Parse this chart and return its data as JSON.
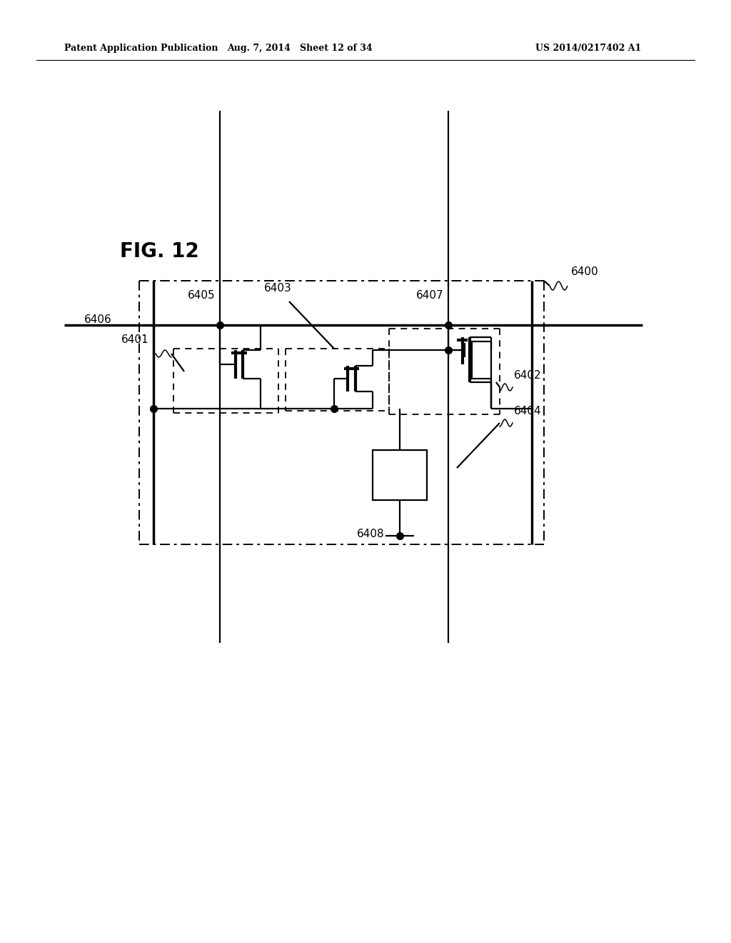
{
  "bg_color": "#ffffff",
  "fig_label": "FIG. 12",
  "header_left": "Patent Application Publication",
  "header_center": "Aug. 7, 2014   Sheet 12 of 34",
  "header_right": "US 2014/0217402 A1",
  "line_color": "#000000",
  "lw_thick": 2.5,
  "lw_thin": 1.6,
  "lw_dash": 1.4,
  "label_fontsize": 11,
  "figlabel_fontsize": 20,
  "header_fontsize": 9
}
